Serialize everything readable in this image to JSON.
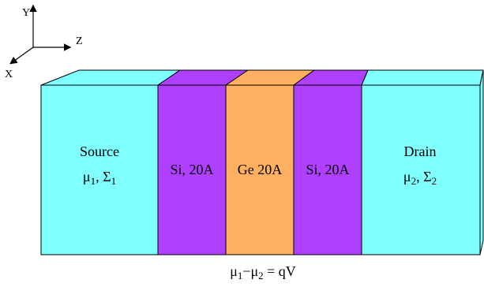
{
  "axes": {
    "y_label": "Y",
    "z_label": "Z",
    "x_label": "X"
  },
  "regions": [
    {
      "id": "source",
      "line1": "Source",
      "mu": "μ",
      "mu_sub": "1",
      "sigma": "Σ",
      "sigma_sub": "1",
      "color": "#80FFFF"
    },
    {
      "id": "si-left",
      "line1": "Si, 20A",
      "color": "#B040FF"
    },
    {
      "id": "ge",
      "line1": "Ge 20A",
      "color": "#FFB060"
    },
    {
      "id": "si-right",
      "line1": "Si, 20A",
      "color": "#B040FF"
    },
    {
      "id": "drain",
      "line1": "Drain",
      "mu": "μ",
      "mu_sub": "2",
      "sigma": "Σ",
      "sigma_sub": "2",
      "color": "#80FFFF"
    }
  ],
  "equation": {
    "mu": "μ",
    "sub1": "1",
    "minus": "−",
    "sub2": "2",
    "rhs": " = qV"
  }
}
